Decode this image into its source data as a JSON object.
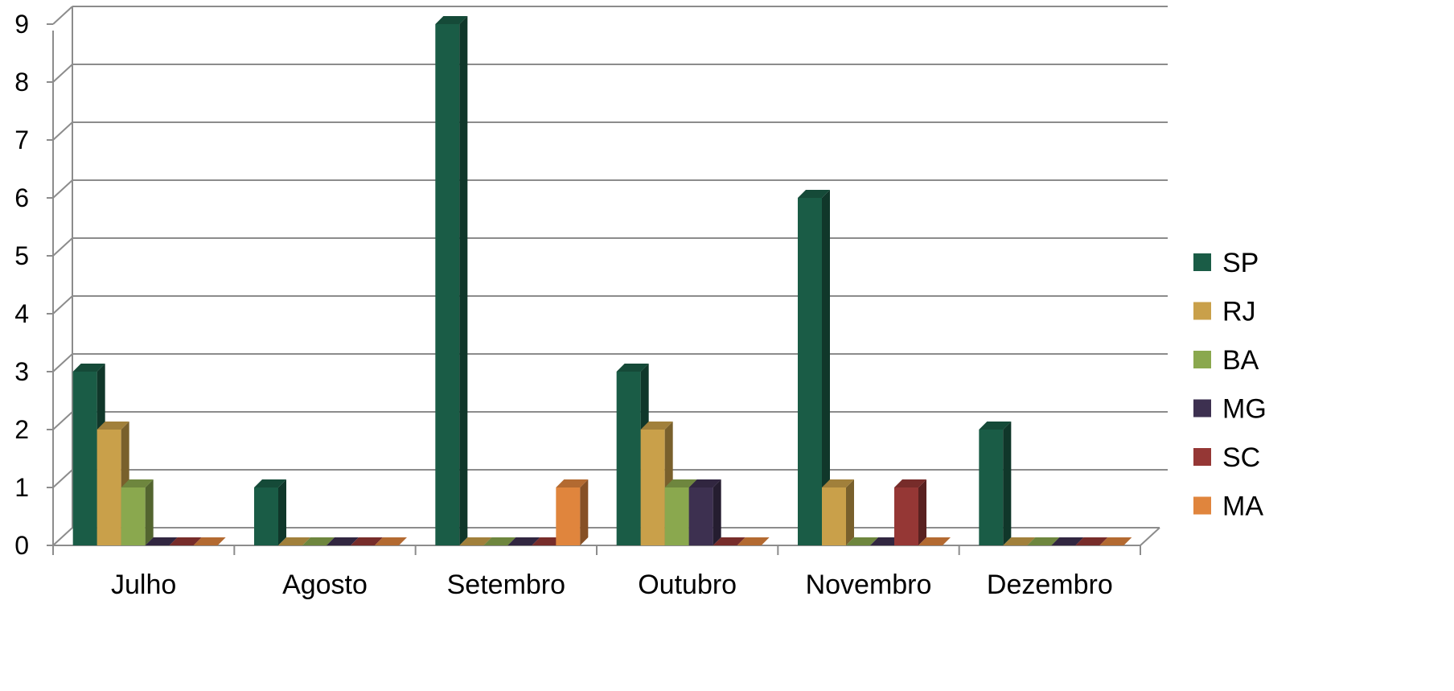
{
  "chart_data": {
    "type": "bar",
    "title": "",
    "xlabel": "",
    "ylabel": "",
    "categories": [
      "Julho",
      "Agosto",
      "Setembro",
      "Outubro",
      "Novembro",
      "Dezembro"
    ],
    "ylim": [
      0,
      9
    ],
    "yticks": [
      "0",
      "1",
      "2",
      "3",
      "4",
      "5",
      "6",
      "7",
      "8",
      "9"
    ],
    "grid": true,
    "legend_position": "right",
    "series": [
      {
        "name": "SP",
        "color": "#1a5c46",
        "values": [
          3,
          1,
          9,
          3,
          6,
          2
        ]
      },
      {
        "name": "RJ",
        "color": "#c9a04a",
        "values": [
          2,
          0,
          0,
          2,
          1,
          0
        ]
      },
      {
        "name": "BA",
        "color": "#8aa84e",
        "values": [
          1,
          0,
          0,
          1,
          0,
          0
        ]
      },
      {
        "name": "MG",
        "color": "#3d3050",
        "values": [
          0,
          0,
          0,
          1,
          0,
          0
        ]
      },
      {
        "name": "SC",
        "color": "#953735",
        "values": [
          0,
          0,
          0,
          0,
          1,
          0
        ]
      },
      {
        "name": "MA",
        "color": "#e0853d",
        "values": [
          0,
          0,
          1,
          0,
          0,
          0
        ]
      }
    ]
  }
}
